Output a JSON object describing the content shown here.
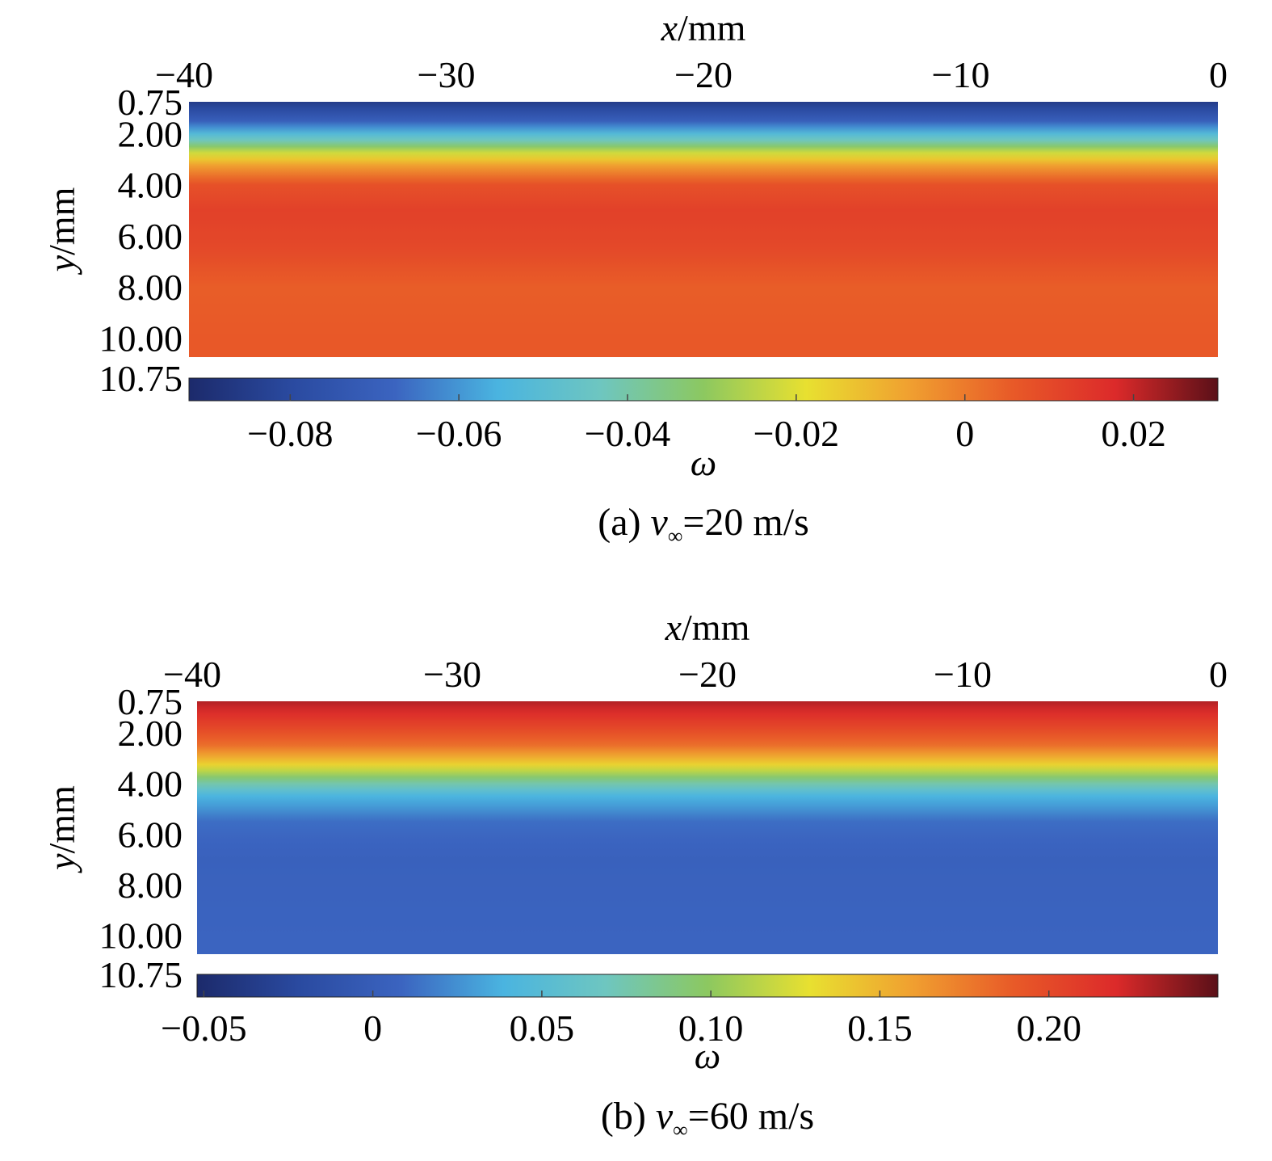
{
  "chart_data": [
    {
      "type": "heatmap",
      "panel": "a",
      "caption": {
        "prefix": "(a) ",
        "var": "v",
        "sub": "∞",
        "suffix": "=20 m/s"
      },
      "xlabel": {
        "var": "x",
        "unit": "/mm"
      },
      "ylabel": {
        "var": "y",
        "unit": "/mm"
      },
      "x_ticks": [
        "−40",
        "−30",
        "−20",
        "−10",
        "0"
      ],
      "x_tick_values": [
        -40,
        -30,
        -20,
        -10,
        0
      ],
      "xlim": [
        -40,
        0
      ],
      "y_ticks": [
        "0.75",
        "2.00",
        "4.00",
        "6.00",
        "8.00",
        "10.00",
        "10.75"
      ],
      "y_tick_values": [
        0.75,
        2.0,
        4.0,
        6.0,
        8.0,
        10.0,
        10.75
      ],
      "ylim": [
        0.75,
        10.75
      ],
      "colorbar": {
        "label": "ω",
        "ticks": [
          "−0.08",
          "−0.06",
          "−0.04",
          "−0.02",
          "0",
          "0.02"
        ],
        "tick_values": [
          -0.08,
          -0.06,
          -0.04,
          -0.02,
          0,
          0.02
        ],
        "range": [
          -0.092,
          0.03
        ]
      },
      "field_profile": {
        "y": [
          0.75,
          1.5,
          2.2,
          2.8,
          3.3,
          4.0,
          5.0,
          6.5,
          8.0,
          10.0
        ],
        "omega": [
          -0.085,
          -0.07,
          -0.045,
          -0.02,
          -0.005,
          0.008,
          0.012,
          0.01,
          0.005,
          0.006
        ]
      }
    },
    {
      "type": "heatmap",
      "panel": "b",
      "caption": {
        "prefix": "(b) ",
        "var": "v",
        "sub": "∞",
        "suffix": "=60 m/s"
      },
      "xlabel": {
        "var": "x",
        "unit": "/mm"
      },
      "ylabel": {
        "var": "y",
        "unit": "/mm"
      },
      "x_ticks": [
        "−40",
        "−30",
        "−20",
        "−10",
        "0"
      ],
      "x_tick_values": [
        -40,
        -30,
        -20,
        -10,
        0
      ],
      "xlim": [
        -40,
        0
      ],
      "y_ticks": [
        "0.75",
        "2.00",
        "4.00",
        "6.00",
        "8.00",
        "10.00",
        "10.75"
      ],
      "y_tick_values": [
        0.75,
        2.0,
        4.0,
        6.0,
        8.0,
        10.0,
        10.75
      ],
      "ylim": [
        0.75,
        10.75
      ],
      "colorbar": {
        "label": "ω",
        "ticks": [
          "−0.05",
          "0",
          "0.05",
          "0.10",
          "0.15",
          "0.20"
        ],
        "tick_values": [
          -0.05,
          0,
          0.05,
          0.1,
          0.15,
          0.2
        ],
        "range": [
          -0.052,
          0.25
        ]
      },
      "field_profile": {
        "y": [
          0.75,
          1.5,
          2.5,
          3.2,
          3.8,
          4.5,
          5.5,
          7.0,
          10.0
        ],
        "omega": [
          0.23,
          0.21,
          0.18,
          0.14,
          0.09,
          0.04,
          0.012,
          0.005,
          0.008
        ]
      }
    }
  ],
  "colormap": [
    "#1c2a6b",
    "#2a4aa0",
    "#3b64c0",
    "#4ab4e0",
    "#6ec6c0",
    "#8cc860",
    "#e8e030",
    "#f0a030",
    "#e85a28",
    "#dc2a2a",
    "#5a1018"
  ]
}
